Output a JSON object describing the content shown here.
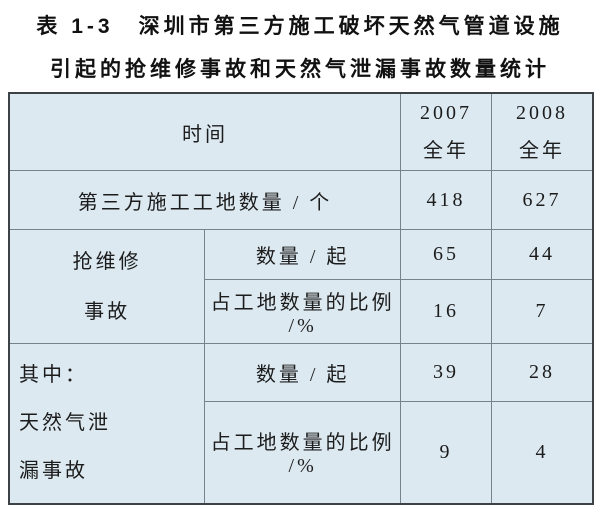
{
  "title": {
    "line1": "表 1-3　深圳市第三方施工破坏天然气管道设施",
    "line2": "引起的抢维修事故和天然气泄漏事故数量统计"
  },
  "table": {
    "header": {
      "time_label": "时间",
      "col_2007": {
        "year": "2007",
        "period": "全年"
      },
      "col_2008": {
        "year": "2008",
        "period": "全年"
      }
    },
    "rows": {
      "sites": {
        "label": "第三方施工工地数量 / 个",
        "v2007": "418",
        "v2008": "627"
      },
      "repair_group": {
        "label_line1": "抢维修",
        "label_line2": "事故",
        "count": {
          "label": "数量 / 起",
          "v2007": "65",
          "v2008": "44"
        },
        "ratio": {
          "label": "占工地数量的比例 /%",
          "v2007": "16",
          "v2008": "7"
        }
      },
      "leak_group": {
        "label_line1": "其中：",
        "label_line2": "天然气泄",
        "label_line3": "漏事故",
        "count": {
          "label": "数量 / 起",
          "v2007": "39",
          "v2008": "28"
        },
        "ratio": {
          "label": "占工地数量的比例 /%",
          "v2007": "9",
          "v2008": "4"
        }
      }
    }
  },
  "colors": {
    "cell_background": "#dce9f1",
    "grid_line": "#75848c",
    "outer_border": "#3c4246",
    "text": "#1c1c1c",
    "page_background": "#ffffff"
  }
}
